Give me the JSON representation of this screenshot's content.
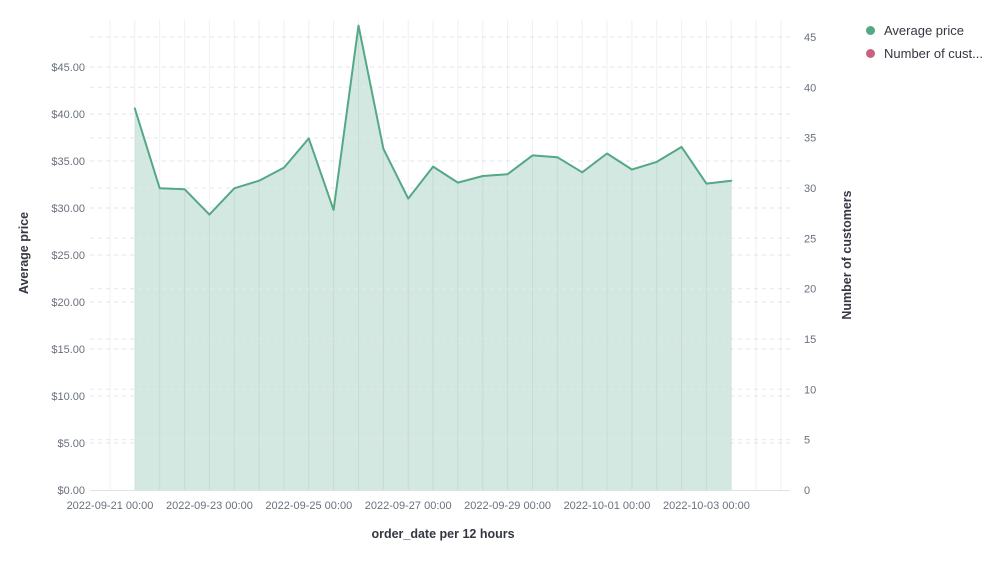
{
  "legend": {
    "items": [
      {
        "label": "Average price",
        "color": "#54a886"
      },
      {
        "label": "Number of cust...",
        "color": "#ca6180"
      }
    ]
  },
  "axes": {
    "left_title": "Average price",
    "right_title": "Number of customers",
    "x_title": "order_date per 12 hours",
    "left_ticks": [
      "$0.00",
      "$5.00",
      "$10.00",
      "$15.00",
      "$20.00",
      "$25.00",
      "$30.00",
      "$35.00",
      "$40.00",
      "$45.00"
    ],
    "right_ticks": [
      "0",
      "5",
      "10",
      "15",
      "20",
      "25",
      "30",
      "35",
      "40",
      "45"
    ],
    "x_ticks": [
      "2022-09-21 00:00",
      "2022-09-23 00:00",
      "2022-09-25 00:00",
      "2022-09-27 00:00",
      "2022-09-29 00:00",
      "2022-10-01 00:00",
      "2022-10-03 00:00"
    ]
  },
  "chart_data": {
    "type": "area",
    "title": "",
    "xlabel": "order_date per 12 hours",
    "ylabel_left": "Average price",
    "ylabel_right": "Number of customers",
    "ylim_left": [
      0,
      45
    ],
    "ylim_right": [
      0,
      45
    ],
    "grid": "dashed horizontal (both axes) + solid vertical every 12 hours",
    "legend_position": "top-right",
    "x": [
      "2022-09-21 12:00",
      "2022-09-22 00:00",
      "2022-09-22 12:00",
      "2022-09-23 00:00",
      "2022-09-23 12:00",
      "2022-09-24 00:00",
      "2022-09-24 12:00",
      "2022-09-25 00:00",
      "2022-09-25 12:00",
      "2022-09-26 00:00",
      "2022-09-26 12:00",
      "2022-09-27 00:00",
      "2022-09-27 12:00",
      "2022-09-28 00:00",
      "2022-09-28 12:00",
      "2022-09-29 00:00",
      "2022-09-29 12:00",
      "2022-09-30 00:00",
      "2022-09-30 12:00",
      "2022-10-01 00:00",
      "2022-10-01 12:00",
      "2022-10-02 00:00",
      "2022-10-02 12:00",
      "2022-10-03 00:00",
      "2022-10-03 12:00"
    ],
    "series": [
      {
        "name": "Average price",
        "axis": "left",
        "color": "#54a886",
        "fill_opacity": 0.26,
        "values": [
          40.6,
          32.1,
          32.0,
          29.3,
          32.1,
          32.9,
          34.3,
          37.4,
          29.8,
          49.4,
          36.3,
          31.0,
          34.4,
          32.7,
          33.4,
          33.6,
          35.6,
          35.4,
          33.8,
          35.8,
          34.1,
          34.9,
          36.5,
          32.6,
          32.9
        ]
      },
      {
        "name": "Number of customers",
        "axis": "right",
        "color": "#ca6180",
        "values": []
      }
    ]
  }
}
